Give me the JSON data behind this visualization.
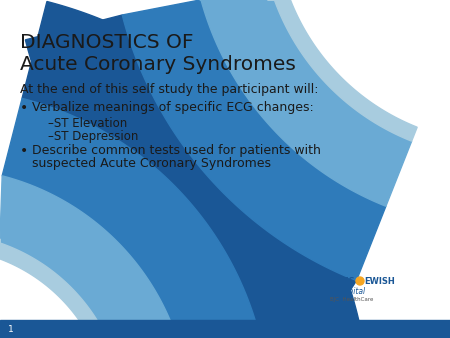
{
  "title_line1": "DIAGNOSTICS OF",
  "title_line2": "Acute Coronary Syndromes",
  "intro_text": "At the end of this self study the participant will:",
  "bullet1": "Verbalize meanings of specific ECG changes:",
  "sub1": "–ST Elevation",
  "sub2": "–ST Depression",
  "bullet2_line1": "Describe common tests used for patients with",
  "bullet2_line2": "suspected Acute Coronary Syndromes",
  "slide_number": "1",
  "bg_color": "#ffffff",
  "title_color": "#1a1a1a",
  "text_color": "#1a1a1a",
  "blue_dark": "#1a5796",
  "blue_mid": "#2f7bba",
  "blue_light": "#6aaad4",
  "blue_lighter": "#a8ccdf",
  "blue_strip": "#1a5796"
}
